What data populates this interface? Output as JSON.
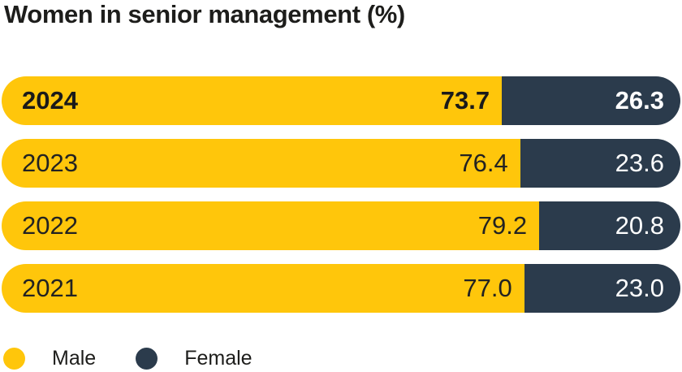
{
  "title": "Women in senior management (%)",
  "colors": {
    "male": "#FFC60B",
    "female": "#2B3B4C",
    "text_dark": "#1D1D1B",
    "text_light": "#FFFFFF",
    "background": "#FFFFFF"
  },
  "chart_data": {
    "type": "bar",
    "orientation": "horizontal",
    "stacked": true,
    "title": "Women in senior management (%)",
    "categories": [
      "2024",
      "2023",
      "2022",
      "2021"
    ],
    "series": [
      {
        "name": "Male",
        "color": "#FFC60B",
        "values": [
          73.7,
          76.4,
          79.2,
          77.0
        ]
      },
      {
        "name": "Female",
        "color": "#2B3B4C",
        "values": [
          26.3,
          23.6,
          20.8,
          23.0
        ]
      }
    ],
    "xlim": [
      0,
      100
    ],
    "value_labels": true,
    "grid": false,
    "legend_position": "bottom",
    "emphasized_category": "2024"
  },
  "rows": [
    {
      "year": "2024",
      "male": "73.7",
      "female": "26.3"
    },
    {
      "year": "2023",
      "male": "76.4",
      "female": "23.6"
    },
    {
      "year": "2022",
      "male": "79.2",
      "female": "20.8"
    },
    {
      "year": "2021",
      "male": "77.0",
      "female": "23.0"
    }
  ],
  "legend": {
    "items": [
      {
        "label": "Male",
        "color": "#FFC60B"
      },
      {
        "label": "Female",
        "color": "#2B3B4C"
      }
    ]
  }
}
